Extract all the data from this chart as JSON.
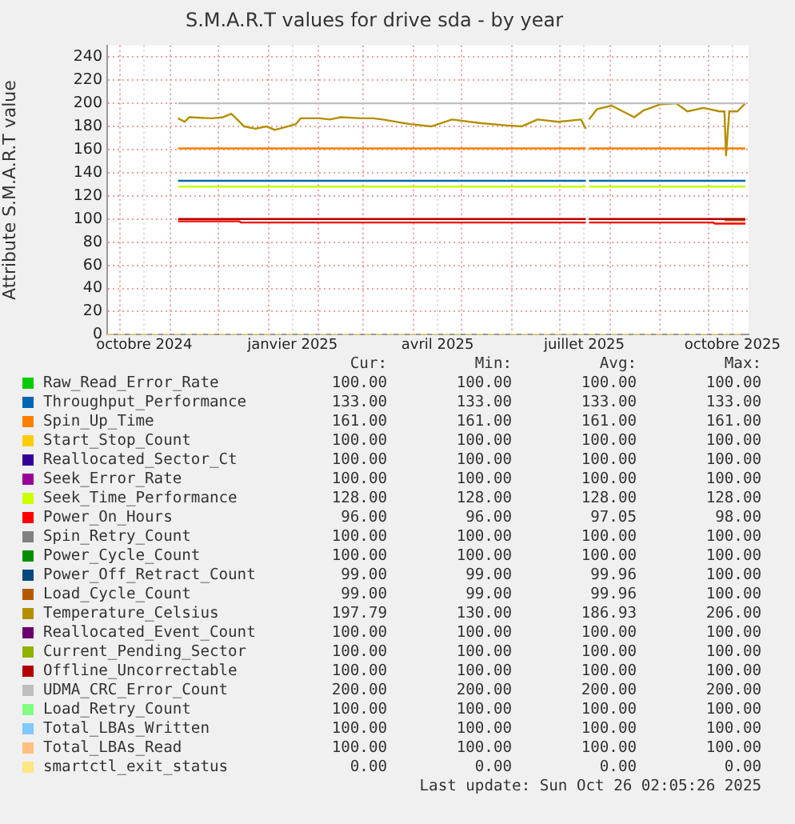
{
  "chart_data": {
    "type": "line",
    "title": "S.M.A.R.T values for drive sda - by year",
    "ylabel": "Attribute S.M.A.R.T value",
    "xlim": [
      "2024-09-23",
      "2025-10-26"
    ],
    "ylim": [
      0,
      250
    ],
    "xticks": [
      {
        "value": "2024-10-01",
        "label": null
      },
      {
        "value": "2024-10-16",
        "label": "octobre 2024"
      },
      {
        "value": "2024-11-01",
        "label": null
      },
      {
        "value": "2024-12-01",
        "label": null
      },
      {
        "value": "2025-01-01",
        "label": null
      },
      {
        "value": "2025-01-16",
        "label": "janvier 2025"
      },
      {
        "value": "2025-02-01",
        "label": null
      },
      {
        "value": "2025-03-01",
        "label": null
      },
      {
        "value": "2025-04-01",
        "label": null
      },
      {
        "value": "2025-04-16",
        "label": "avril 2025"
      },
      {
        "value": "2025-05-01",
        "label": null
      },
      {
        "value": "2025-06-01",
        "label": null
      },
      {
        "value": "2025-07-01",
        "label": null
      },
      {
        "value": "2025-07-16",
        "label": "juillet 2025"
      },
      {
        "value": "2025-08-01",
        "label": null
      },
      {
        "value": "2025-09-01",
        "label": null
      },
      {
        "value": "2025-10-01",
        "label": null
      },
      {
        "value": "2025-10-16",
        "label": "octobre 2025"
      }
    ],
    "yticks": [
      0,
      20,
      40,
      60,
      80,
      100,
      120,
      140,
      160,
      180,
      200,
      220,
      240
    ],
    "grid": true,
    "legend": "bottom",
    "marker": "none",
    "line_style": "solid",
    "series": [
      {
        "name": "Raw_Read_Error_Rate",
        "color": "#00cc00"
      },
      {
        "name": "Throughput_Performance",
        "color": "#0066b3",
        "x": [
          "2024-11-06",
          "2025-07-17",
          "2025-07-18",
          "2025-07-19",
          "2025-10-24"
        ],
        "values": [
          133,
          133,
          null,
          133,
          133
        ]
      },
      {
        "name": "Spin_Up_Time",
        "color": "#ff8000",
        "x": [
          "2024-11-06",
          "2025-07-17",
          "2025-07-18",
          "2025-07-19",
          "2025-10-24"
        ],
        "values": [
          161,
          161,
          null,
          161,
          161
        ]
      },
      {
        "name": "Start_Stop_Count",
        "color": "#ffcc00"
      },
      {
        "name": "Reallocated_Sector_Ct",
        "color": "#330099"
      },
      {
        "name": "Seek_Error_Rate",
        "color": "#990099"
      },
      {
        "name": "Seek_Time_Performance",
        "color": "#ccff00",
        "x": [
          "2024-11-06",
          "2025-07-17",
          "2025-07-18",
          "2025-07-19",
          "2025-10-24"
        ],
        "values": [
          128,
          128,
          null,
          128,
          128
        ]
      },
      {
        "name": "Power_On_Hours",
        "color": "#ff0000",
        "x": [
          "2024-11-06",
          "2024-12-14",
          "2024-12-15",
          "2025-07-17",
          "2025-07-18",
          "2025-07-19",
          "2025-10-04",
          "2025-10-05",
          "2025-10-24"
        ],
        "values": [
          98,
          98,
          97,
          97,
          null,
          97,
          97,
          96,
          96
        ]
      },
      {
        "name": "Spin_Retry_Count",
        "color": "#808080"
      },
      {
        "name": "Power_Cycle_Count",
        "color": "#008f00"
      },
      {
        "name": "Power_Off_Retract_Count",
        "color": "#00487d"
      },
      {
        "name": "Load_Cycle_Count",
        "color": "#b35a00",
        "x": [
          "2025-10-11",
          "2025-10-24"
        ],
        "values": [
          99,
          99
        ]
      },
      {
        "name": "Temperature_Celsius",
        "color": "#b38f00",
        "x": [
          "2024-11-06",
          "2024-11-10",
          "2024-11-13",
          "2024-11-27",
          "2024-12-04",
          "2024-12-09",
          "2024-12-12",
          "2024-12-17",
          "2024-12-24",
          "2024-12-31",
          "2025-01-05",
          "2025-01-13",
          "2025-01-18",
          "2025-01-21",
          "2025-02-02",
          "2025-02-08",
          "2025-02-15",
          "2025-02-28",
          "2025-03-07",
          "2025-03-13",
          "2025-03-30",
          "2025-04-12",
          "2025-04-25",
          "2025-05-12",
          "2025-05-28",
          "2025-06-07",
          "2025-06-17",
          "2025-06-30",
          "2025-07-14",
          "2025-07-17",
          "2025-07-18",
          "2025-07-19",
          "2025-07-24",
          "2025-08-02",
          "2025-08-16",
          "2025-08-22",
          "2025-09-01",
          "2025-09-11",
          "2025-09-18",
          "2025-09-28",
          "2025-10-08",
          "2025-10-11",
          "2025-10-12",
          "2025-10-14",
          "2025-10-19",
          "2025-10-24"
        ],
        "values": [
          187,
          184,
          188,
          187,
          188,
          191,
          187,
          180,
          178,
          180,
          177,
          180,
          182,
          187,
          187,
          186,
          188,
          187,
          187,
          186,
          182,
          180,
          186,
          183,
          181,
          180,
          186,
          184,
          186,
          178,
          null,
          186,
          195,
          198,
          188,
          194,
          199,
          200,
          193,
          196,
          193,
          193,
          155,
          193,
          193,
          200
        ]
      },
      {
        "name": "Reallocated_Event_Count",
        "color": "#6b006b"
      },
      {
        "name": "Current_Pending_Sector",
        "color": "#8fb300"
      },
      {
        "name": "Offline_Uncorrectable",
        "color": "#b30000",
        "x": [
          "2024-11-06",
          "2025-07-17",
          "2025-07-18",
          "2025-07-19",
          "2025-10-24"
        ],
        "values": [
          100,
          100,
          null,
          100,
          100
        ]
      },
      {
        "name": "UDMA_CRC_Error_Count",
        "color": "#bebebe",
        "x": [
          "2024-11-06",
          "2025-07-17",
          "2025-07-18",
          "2025-07-19",
          "2025-10-24"
        ],
        "values": [
          200,
          200,
          null,
          200,
          200
        ]
      },
      {
        "name": "Load_Retry_Count",
        "color": "#80ff80"
      },
      {
        "name": "Total_LBAs_Written",
        "color": "#80c9ff"
      },
      {
        "name": "Total_LBAs_Read",
        "color": "#ffc080"
      },
      {
        "name": "smartctl_exit_status",
        "color": "#ffe680",
        "line_style": "dashed",
        "x": [
          "2024-09-23",
          "2025-10-24"
        ],
        "values": [
          0,
          0
        ]
      }
    ],
    "annotations": [
      "Cur:",
      "Min:",
      "Avg:",
      "Max:",
      "100.00",
      "100.00",
      "100.00",
      "100.00",
      "133.00",
      "133.00",
      "133.00",
      "133.00",
      "161.00",
      "161.00",
      "161.00",
      "161.00",
      "100.00",
      "100.00",
      "100.00",
      "100.00",
      "100.00",
      "100.00",
      "100.00",
      "100.00",
      "100.00",
      "100.00",
      "100.00",
      "100.00",
      "128.00",
      "128.00",
      "128.00",
      "128.00",
      "96.00",
      "96.00",
      "97.05",
      "98.00",
      "100.00",
      "100.00",
      "100.00",
      "100.00",
      "100.00",
      "100.00",
      "100.00",
      "100.00",
      "99.00",
      "99.00",
      "99.96",
      "100.00",
      "99.00",
      "99.00",
      "99.96",
      "100.00",
      "197.79",
      "130.00",
      "186.93",
      "206.00",
      "100.00",
      "100.00",
      "100.00",
      "100.00",
      "100.00",
      "100.00",
      "100.00",
      "100.00",
      "100.00",
      "100.00",
      "100.00",
      "100.00",
      "200.00",
      "200.00",
      "200.00",
      "200.00",
      "100.00",
      "100.00",
      "100.00",
      "100.00",
      "100.00",
      "100.00",
      "100.00",
      "100.00",
      "100.00",
      "100.00",
      "100.00",
      "100.00",
      "0.00",
      "0.00",
      "0.00",
      "0.00",
      "Last update: Sun Oct 26 02:05:26 2025"
    ]
  }
}
